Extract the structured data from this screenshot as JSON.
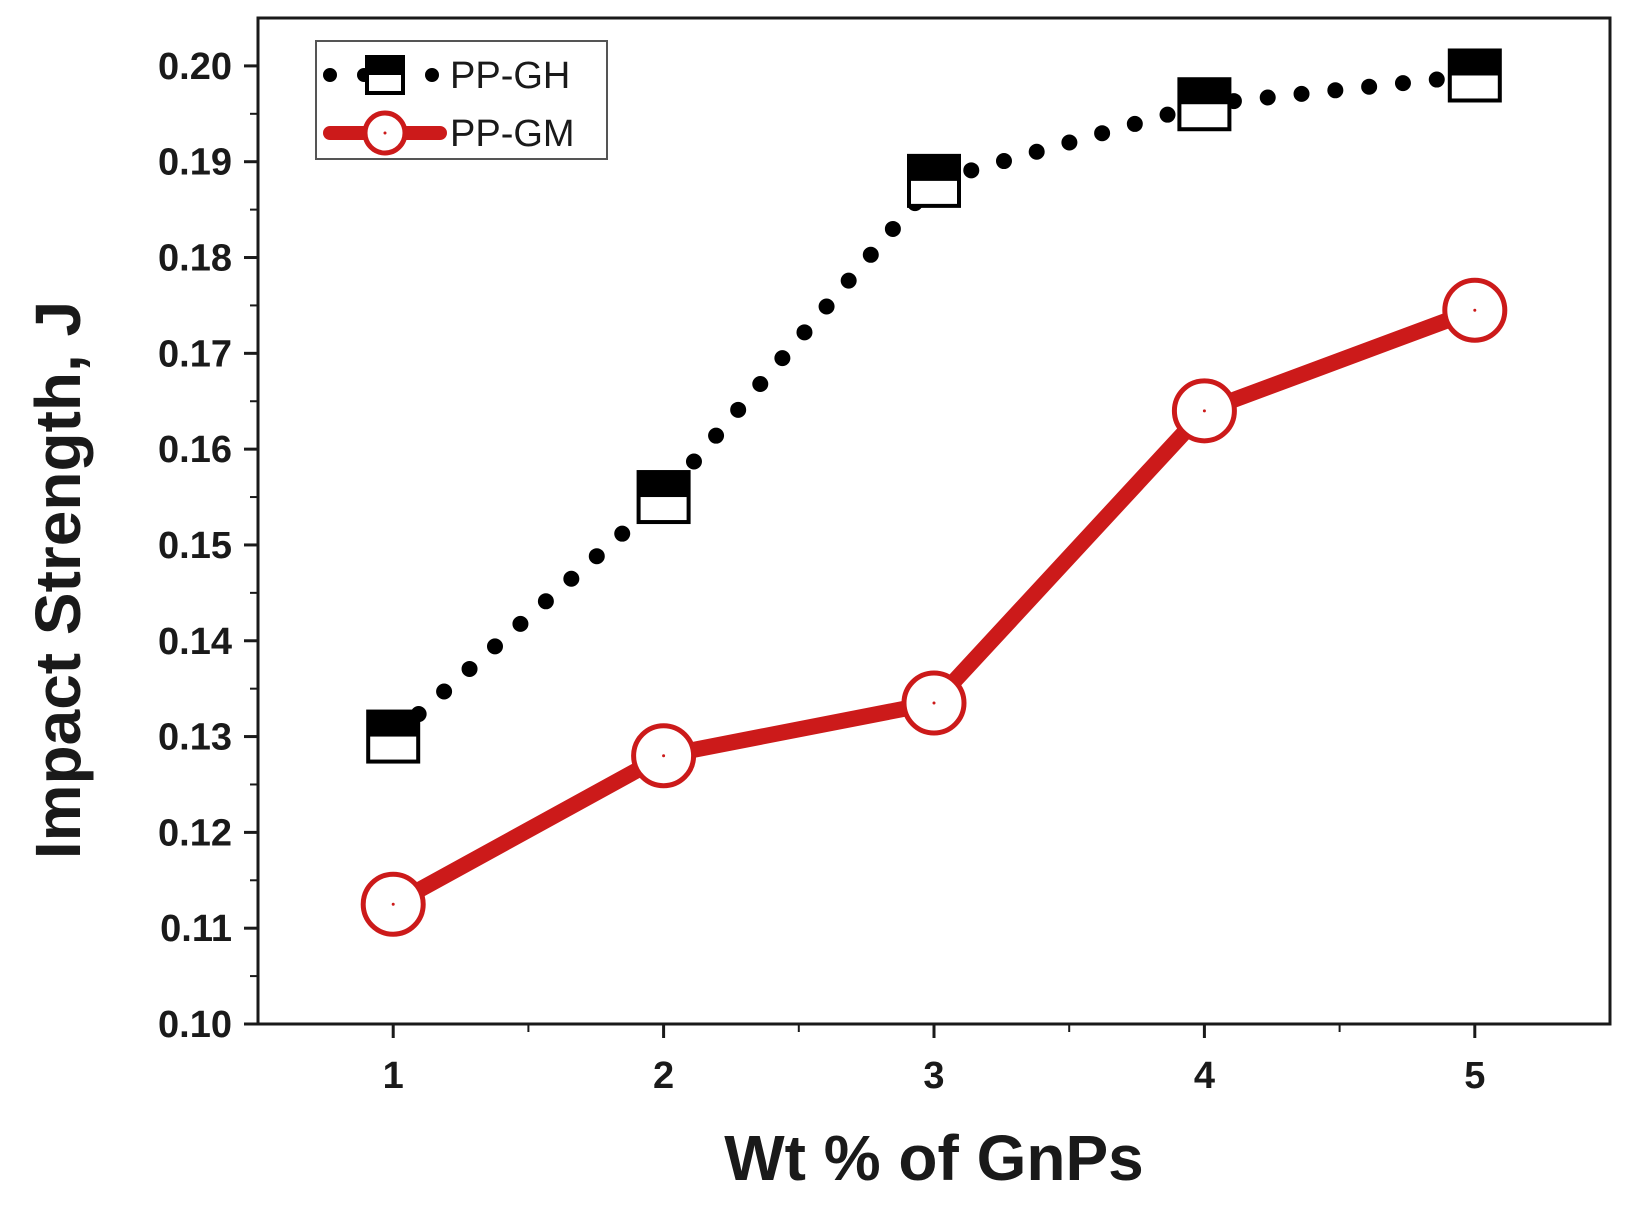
{
  "chart_data": {
    "type": "line",
    "title": "",
    "xlabel": "Wt % of GnPs",
    "ylabel": "Impact Strength, J",
    "x": [
      1,
      2,
      3,
      4,
      5
    ],
    "xlim": [
      0.5,
      5.5
    ],
    "ylim": [
      0.1,
      0.205
    ],
    "x_ticks": [
      1,
      2,
      3,
      4,
      5
    ],
    "x_tick_labels": [
      "1",
      "2",
      "3",
      "4",
      "5"
    ],
    "y_ticks": [
      0.1,
      0.11,
      0.12,
      0.13,
      0.14,
      0.15,
      0.16,
      0.17,
      0.18,
      0.19,
      0.2
    ],
    "y_tick_labels": [
      "0.10",
      "0.11",
      "0.12",
      "0.13",
      "0.14",
      "0.15",
      "0.16",
      "0.17",
      "0.18",
      "0.19",
      "0.20"
    ],
    "grid": false,
    "legend_position": "top-left",
    "series": [
      {
        "name": "PP-GH",
        "values": [
          0.13,
          0.155,
          0.188,
          0.196,
          0.199
        ],
        "color": "#000000",
        "line_style": "dotted",
        "marker": "half-filled-square"
      },
      {
        "name": "PP-GM",
        "values": [
          0.1125,
          0.128,
          0.1335,
          0.164,
          0.1745
        ],
        "color": "#cc1a1a",
        "line_style": "solid",
        "marker": "open-circle"
      }
    ]
  }
}
